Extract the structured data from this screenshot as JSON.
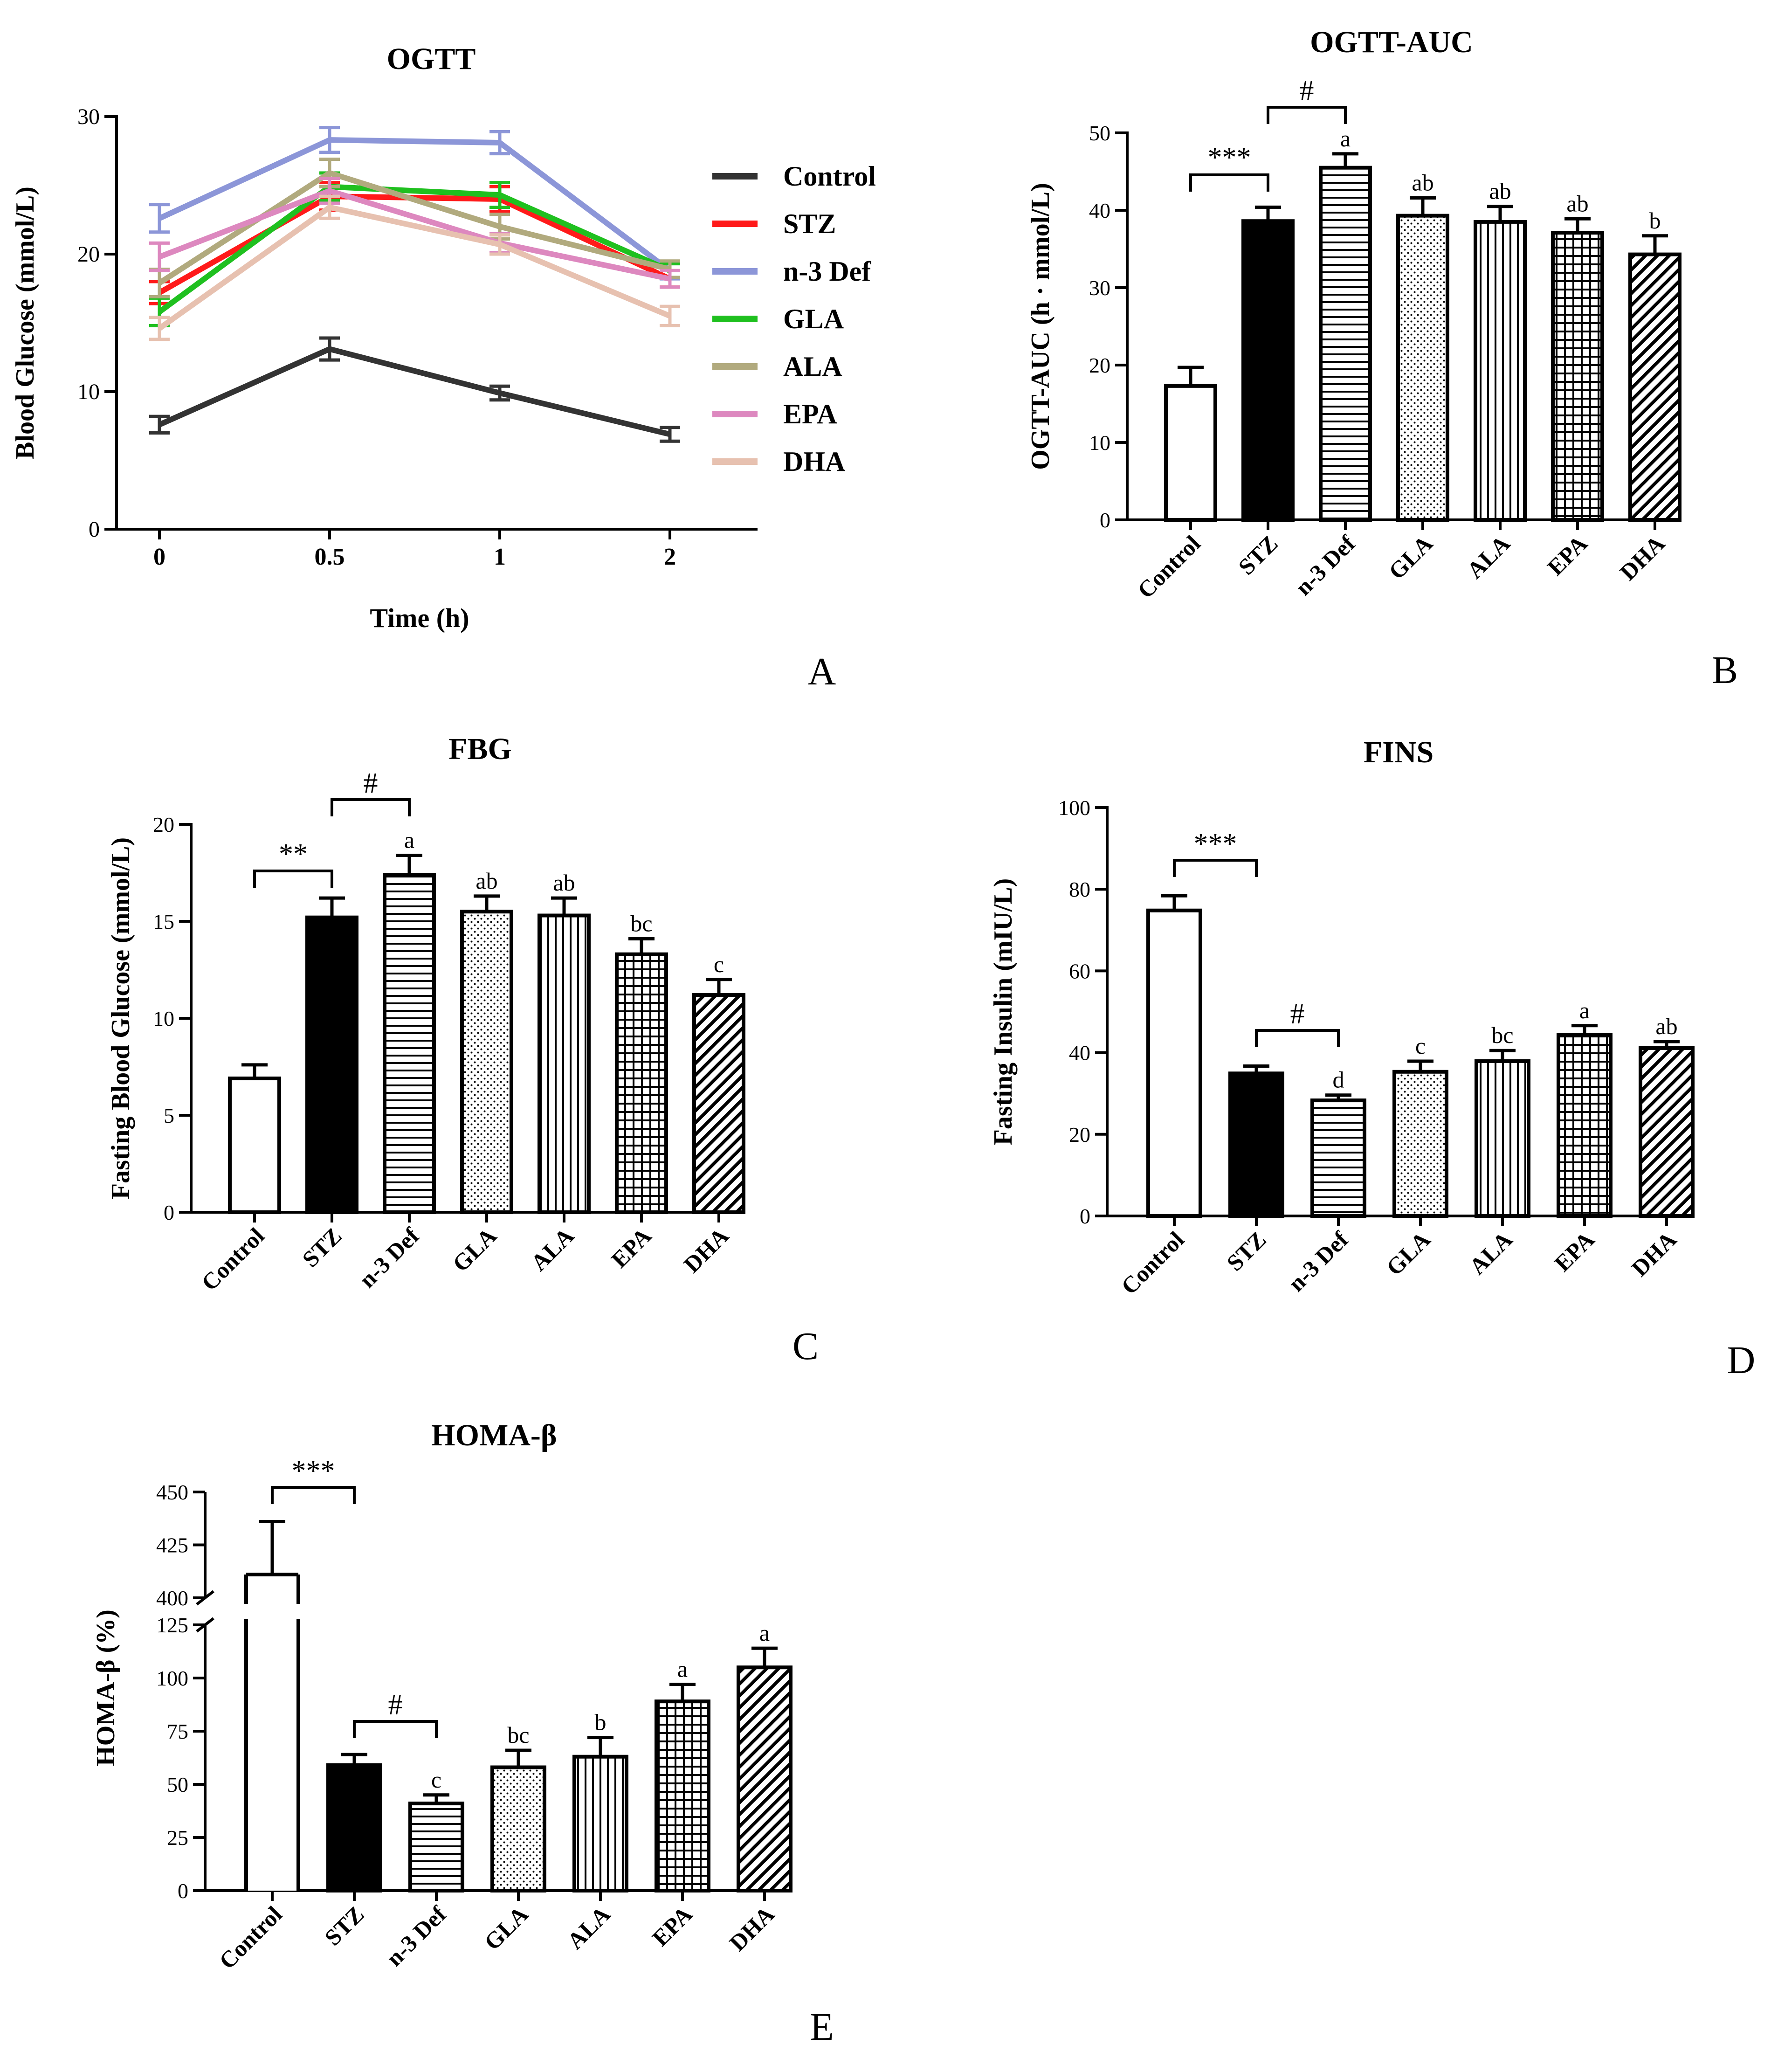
{
  "chart_data": [
    {
      "id": "A",
      "type": "line",
      "panel_letter": "A",
      "title": "OGTT",
      "xlabel": "Time (h)",
      "ylabel": "Blood Glucose (mmol/L)",
      "x": [
        "0",
        "0.5",
        "1",
        "2"
      ],
      "ylim": [
        0,
        30
      ],
      "yticks": [
        "0",
        "10",
        "20",
        "30"
      ],
      "legend_position": "right",
      "series": [
        {
          "name": "Control",
          "color": "#333333",
          "values": [
            7.6,
            13.1,
            9.9,
            6.9
          ],
          "errors": [
            0.6,
            0.8,
            0.5,
            0.5
          ]
        },
        {
          "name": "STZ",
          "color": "#ff1a1a",
          "values": [
            17.2,
            24.2,
            24.0,
            18.2
          ],
          "errors": [
            0.8,
            1.0,
            0.9,
            0.6
          ]
        },
        {
          "name": "n-3 Def",
          "color": "#8c96d8",
          "values": [
            22.6,
            28.3,
            28.1,
            18.8
          ],
          "errors": [
            1.0,
            0.9,
            0.8,
            0.6
          ]
        },
        {
          "name": "GLA",
          "color": "#1fc01f",
          "values": [
            15.8,
            24.9,
            24.3,
            18.8
          ],
          "errors": [
            1.0,
            1.0,
            0.9,
            0.5
          ]
        },
        {
          "name": "ALA",
          "color": "#b1aa7e",
          "values": [
            17.9,
            25.9,
            22.0,
            18.9
          ],
          "errors": [
            1.0,
            1.0,
            0.9,
            0.6
          ]
        },
        {
          "name": "EPA",
          "color": "#dd88bf",
          "values": [
            19.8,
            24.6,
            20.8,
            18.2
          ],
          "errors": [
            1.0,
            0.9,
            0.7,
            0.6
          ]
        },
        {
          "name": "DHA",
          "color": "#e7c1b0",
          "values": [
            14.6,
            23.4,
            20.7,
            15.5
          ],
          "errors": [
            0.8,
            0.8,
            0.7,
            0.7
          ]
        }
      ]
    },
    {
      "id": "B",
      "type": "bar",
      "panel_letter": "B",
      "title": "OGTT-AUC",
      "ylabel": "OGTT-AUC  (h · mmol/L)",
      "categories": [
        "Control",
        "STZ",
        "n-3 Def",
        "GLA",
        "ALA",
        "EPA",
        "DHA"
      ],
      "values": [
        17.3,
        38.6,
        45.5,
        39.3,
        38.5,
        37.1,
        34.3
      ],
      "errors": [
        2.4,
        1.8,
        1.8,
        2.3,
        2.0,
        1.8,
        2.4
      ],
      "labels": [
        "",
        "",
        "a",
        "ab",
        "ab",
        "ab",
        "b"
      ],
      "ylim": [
        0,
        50
      ],
      "yticks": [
        "0",
        "10",
        "20",
        "30",
        "40",
        "50"
      ],
      "brackets": [
        {
          "from": 0,
          "to": 1,
          "label": "***"
        },
        {
          "from": 1,
          "to": 2,
          "label": "#"
        }
      ]
    },
    {
      "id": "C",
      "type": "bar",
      "panel_letter": "C",
      "title": "FBG",
      "ylabel": "Fasting Blood Glucose  (mmol/L)",
      "categories": [
        "Control",
        "STZ",
        "n-3 Def",
        "GLA",
        "ALA",
        "EPA",
        "DHA"
      ],
      "values": [
        6.9,
        15.2,
        17.4,
        15.5,
        15.3,
        13.3,
        11.2
      ],
      "errors": [
        0.7,
        1.0,
        1.0,
        0.8,
        0.9,
        0.8,
        0.8
      ],
      "labels": [
        "",
        "",
        "a",
        "ab",
        "ab",
        "bc",
        "c"
      ],
      "ylim": [
        0,
        20
      ],
      "yticks": [
        "0",
        "5",
        "10",
        "15",
        "20"
      ],
      "brackets": [
        {
          "from": 0,
          "to": 1,
          "label": "**"
        },
        {
          "from": 1,
          "to": 2,
          "label": "#"
        }
      ]
    },
    {
      "id": "D",
      "type": "bar",
      "panel_letter": "D",
      "title": "FINS",
      "ylabel": "Fasting Insulin (mIU/L)",
      "categories": [
        "Control",
        "STZ",
        "n-3 Def",
        "GLA",
        "ALA",
        "EPA",
        "DHA"
      ],
      "values": [
        74.8,
        34.9,
        28.3,
        35.3,
        37.9,
        44.4,
        41.1
      ],
      "errors": [
        3.6,
        1.8,
        1.3,
        2.6,
        2.6,
        2.2,
        1.6
      ],
      "labels": [
        "",
        "",
        "d",
        "c",
        "bc",
        "a",
        "ab"
      ],
      "ylim": [
        0,
        100
      ],
      "yticks": [
        "0",
        "20",
        "40",
        "60",
        "80",
        "100"
      ],
      "brackets": [
        {
          "from": 0,
          "to": 1,
          "label": "***"
        },
        {
          "from": 1,
          "to": 2,
          "label": "#"
        }
      ]
    },
    {
      "id": "E",
      "type": "bar",
      "panel_letter": "E",
      "title": "HOMA-β",
      "ylabel": "HOMA-β (%)",
      "categories": [
        "Control",
        "STZ",
        "n-3 Def",
        "GLA",
        "ALA",
        "EPA",
        "DHA"
      ],
      "values": [
        411,
        59,
        41,
        58,
        63,
        89,
        105
      ],
      "errors": [
        25,
        5,
        4,
        8,
        9,
        8,
        9
      ],
      "labels": [
        "",
        "",
        "c",
        "bc",
        "b",
        "a",
        "a"
      ],
      "axis_break": [
        125,
        400
      ],
      "ylim": [
        0,
        450
      ],
      "yticks": [
        "0",
        "25",
        "50",
        "75",
        "100",
        "125",
        "400",
        "425",
        "450"
      ],
      "brackets": [
        {
          "from": 0,
          "to": 1,
          "label": "***"
        },
        {
          "from": 1,
          "to": 2,
          "label": "#"
        }
      ]
    }
  ]
}
